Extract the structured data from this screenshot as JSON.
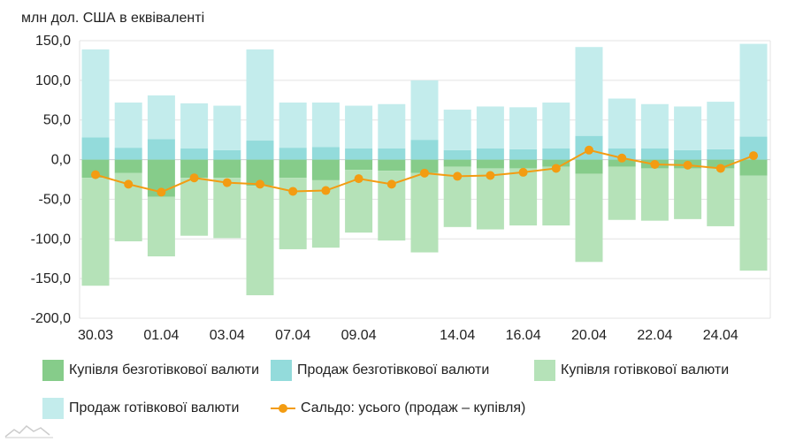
{
  "chart_data": {
    "type": "bar",
    "unit_label": "млн дол. США в еквіваленті",
    "x_tick_labels": [
      "30.03",
      "01.04",
      "03.04",
      "07.04",
      "09.04",
      "14.04",
      "16.04",
      "20.04",
      "22.04",
      "24.04"
    ],
    "x_tick_indices": [
      0,
      2,
      4,
      6,
      8,
      11,
      13,
      15,
      17,
      19
    ],
    "y_ticks": [
      "150,0",
      "100,0",
      "50,0",
      "0,0",
      "-50,0",
      "-100,0",
      "-150,0",
      "-200,0"
    ],
    "ylim": [
      -200,
      150
    ],
    "grid": true,
    "legend_position": "bottom",
    "series": [
      {
        "name": "Купівля безготівкової валюти",
        "color": "#86cc8a",
        "values": [
          -23,
          -17,
          -47,
          -23,
          -23,
          -33,
          -23,
          -26,
          -13,
          -14,
          -17,
          -9,
          -11,
          -11,
          -9,
          -18,
          -9,
          -11,
          -11,
          -11,
          -20
        ]
      },
      {
        "name": "Продаж безготівкової валюти",
        "color": "#93dbdb",
        "values": [
          28,
          15,
          26,
          14,
          12,
          24,
          15,
          16,
          14,
          14,
          25,
          12,
          14,
          13,
          14,
          30,
          14,
          14,
          12,
          13,
          29
        ]
      },
      {
        "name": "Купівля готівкової валюти",
        "color": "#b5e2b8",
        "values": [
          -136,
          -86,
          -75,
          -73,
          -76,
          -138,
          -90,
          -85,
          -79,
          -88,
          -100,
          -76,
          -77,
          -72,
          -74,
          -111,
          -67,
          -66,
          -64,
          -73,
          -120
        ]
      },
      {
        "name": "Продаж готівкової валюти",
        "color": "#c3ecec",
        "values": [
          111,
          57,
          55,
          57,
          56,
          115,
          57,
          56,
          54,
          56,
          75,
          51,
          53,
          53,
          58,
          112,
          63,
          56,
          55,
          60,
          117
        ]
      },
      {
        "name": "Сальдо: усього (продаж – купівля)",
        "color": "#f39c12",
        "type": "line",
        "values": [
          -19,
          -31,
          -41,
          -23,
          -29,
          -31,
          -40,
          -39,
          -24,
          -31,
          -17,
          -21,
          -20,
          -16,
          -11,
          12,
          2,
          -6,
          -7,
          -11,
          5
        ]
      }
    ]
  }
}
